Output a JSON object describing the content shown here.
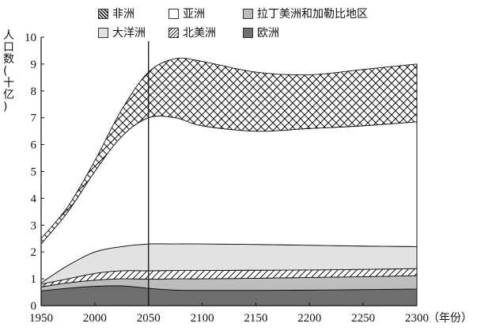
{
  "legend": {
    "africa": "非洲",
    "asia": "亚洲",
    "latin_america": "拉丁美洲和加勒比地区",
    "oceania": "大洋洲",
    "north_america": "北美洲",
    "europe": "欧洲"
  },
  "y_axis_label_chars": [
    "人",
    "口",
    "数",
    "(",
    "十",
    "亿",
    ")"
  ],
  "x_unit": "（年份）",
  "chart_data": {
    "type": "area",
    "stacked": true,
    "x_ticks": [
      1950,
      2000,
      2050,
      2100,
      2150,
      2200,
      2250,
      2300
    ],
    "y_ticks": [
      0,
      1,
      2,
      3,
      4,
      5,
      6,
      7,
      8,
      9,
      10
    ],
    "ylim": [
      0,
      10
    ],
    "xlim": [
      1950,
      2300
    ],
    "vertical_reference_line": 2050,
    "x": [
      1950,
      1975,
      2000,
      2025,
      2050,
      2075,
      2100,
      2150,
      2200,
      2250,
      2300
    ],
    "cumulative_tops": {
      "europe": [
        0.55,
        0.65,
        0.72,
        0.74,
        0.65,
        0.58,
        0.57,
        0.57,
        0.58,
        0.6,
        0.62
      ],
      "latin_america": [
        0.7,
        0.85,
        0.95,
        1.0,
        0.99,
        1.0,
        1.0,
        1.02,
        1.05,
        1.08,
        1.12
      ],
      "north_america": [
        0.8,
        1.0,
        1.2,
        1.3,
        1.3,
        1.31,
        1.31,
        1.32,
        1.33,
        1.35,
        1.38
      ],
      "oceania": [
        0.85,
        1.5,
        2.0,
        2.2,
        2.3,
        2.3,
        2.3,
        2.28,
        2.25,
        2.22,
        2.2
      ],
      "asia": [
        2.3,
        3.5,
        5.0,
        6.3,
        7.0,
        7.0,
        6.7,
        6.5,
        6.6,
        6.7,
        6.85
      ],
      "africa": [
        2.5,
        3.7,
        5.4,
        7.3,
        8.7,
        9.2,
        9.1,
        8.7,
        8.6,
        8.8,
        9.0
      ]
    },
    "series_order": [
      "europe",
      "latin_america",
      "north_america",
      "oceania",
      "asia",
      "africa"
    ]
  }
}
